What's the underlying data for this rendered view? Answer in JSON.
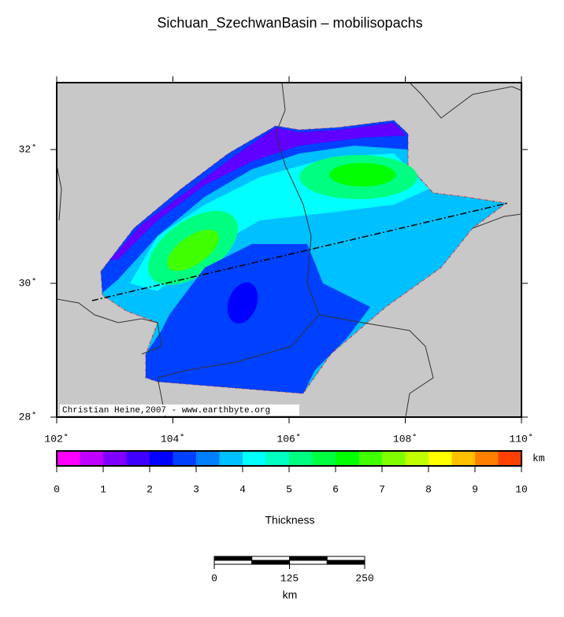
{
  "title": "Sichuan_SzechwanBasin – mobilisopachs",
  "map": {
    "xlim": [
      102,
      110
    ],
    "ylim": [
      28,
      33
    ],
    "xticks": [
      {
        "value": 102,
        "label": "102˚"
      },
      {
        "value": 104,
        "label": "104˚"
      },
      {
        "value": 106,
        "label": "106˚"
      },
      {
        "value": 108,
        "label": "108˚"
      },
      {
        "value": 110,
        "label": "110˚"
      }
    ],
    "yticks": [
      {
        "value": 28,
        "label": "28˚"
      },
      {
        "value": 30,
        "label": "30˚"
      },
      {
        "value": 32,
        "label": "32˚"
      }
    ],
    "credit": "Christian Heine,2007 - www.earthbyte.org"
  },
  "colorbar": {
    "range": [
      0,
      10
    ],
    "ticks": [
      0,
      1,
      2,
      3,
      4,
      5,
      6,
      7,
      8,
      9,
      10
    ],
    "unit": "km",
    "label": "Thickness",
    "colors": [
      "#ff00ff",
      "#c000ff",
      "#8000ff",
      "#4000ff",
      "#0000ff",
      "#0040ff",
      "#0080ff",
      "#00c0ff",
      "#00ffff",
      "#00ffc0",
      "#00ff80",
      "#00ff40",
      "#00ff00",
      "#40ff00",
      "#80ff00",
      "#c0ff00",
      "#ffff00",
      "#ffc000",
      "#ff8000",
      "#ff4000"
    ]
  },
  "scalebar": {
    "range": [
      0,
      250
    ],
    "ticks": [
      0,
      125,
      250
    ],
    "unit": "km"
  }
}
